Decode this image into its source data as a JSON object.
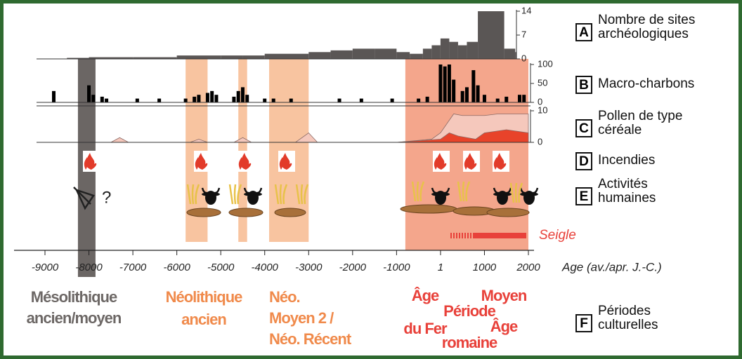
{
  "time_axis": {
    "xlim": [
      -9000,
      2000
    ],
    "xticks": [
      -9000,
      -8000,
      -7000,
      -6000,
      -5000,
      -4000,
      -3000,
      -2000,
      -1000,
      1,
      1000,
      2000
    ],
    "label": "Age (av./apr. J.-C.)"
  },
  "bands": [
    {
      "start": -8250,
      "end": -7850,
      "color": "#6b6664"
    },
    {
      "start": -5800,
      "end": -5300,
      "color": "#f8c4a0"
    },
    {
      "start": -4600,
      "end": -4400,
      "color": "#f8c4a0"
    },
    {
      "start": -3900,
      "end": -3000,
      "color": "#f8c4a0"
    },
    {
      "start": -800,
      "end": 2000,
      "color": "#f4a68c"
    }
  ],
  "chart_data": [
    {
      "type": "step",
      "color": "#5a5655",
      "x": [
        -8500,
        -8000,
        -7000,
        -6000,
        -5000,
        -4500,
        -4000,
        -3500,
        -3000,
        -2500,
        -2000,
        -1500,
        -1000,
        -700,
        -400,
        -200,
        0,
        200,
        400,
        600,
        850,
        1450,
        1700
      ],
      "values": [
        0.3,
        0.5,
        0.5,
        1,
        1,
        1,
        1.5,
        1.5,
        2,
        2.5,
        3,
        3,
        2,
        1.5,
        3,
        4,
        6,
        5,
        4,
        5,
        14,
        3,
        2
      ],
      "ylim": [
        0,
        14
      ],
      "yticks": [
        0,
        7,
        14
      ]
    },
    {
      "type": "bar",
      "color": "#000000",
      "x": [
        -8800,
        -8000,
        -7900,
        -7700,
        -7600,
        -6900,
        -6400,
        -5800,
        -5600,
        -5500,
        -5300,
        -5200,
        -5100,
        -4700,
        -4600,
        -4500,
        -4400,
        -4000,
        -3800,
        -3400,
        -2300,
        -1800,
        -1100,
        -500,
        -300,
        0,
        100,
        200,
        300,
        500,
        600,
        750,
        850,
        1000,
        1300,
        1500,
        1800,
        1900
      ],
      "values": [
        30,
        45,
        20,
        15,
        10,
        10,
        10,
        10,
        15,
        20,
        25,
        30,
        20,
        15,
        30,
        40,
        20,
        10,
        10,
        10,
        10,
        10,
        10,
        10,
        15,
        100,
        95,
        100,
        60,
        30,
        40,
        85,
        45,
        20,
        10,
        15,
        20,
        20
      ],
      "ylim": [
        0,
        100
      ],
      "yticks": [
        0,
        50,
        100
      ]
    },
    {
      "type": "area",
      "series": [
        {
          "color": "#f5c8bc",
          "x": [
            -9000,
            -7500,
            -7300,
            -7100,
            -5700,
            -5500,
            -5300,
            -4700,
            -4500,
            -4300,
            -3300,
            -3000,
            -2800,
            -1000,
            -200,
            0,
            300,
            500,
            1000,
            1300,
            2000
          ],
          "values": [
            0,
            0,
            1.5,
            0,
            0,
            1,
            0,
            0,
            1.5,
            0,
            0,
            3,
            0,
            0,
            1,
            3,
            9,
            8.5,
            8.5,
            9,
            9
          ]
        },
        {
          "color": "#e8432a",
          "x": [
            -1000,
            0,
            200,
            400,
            800,
            1000,
            1500,
            2000
          ],
          "values": [
            0,
            1,
            3,
            2,
            1,
            3,
            4,
            3
          ]
        }
      ],
      "ylim": [
        0,
        10
      ],
      "yticks": [
        0,
        10
      ]
    }
  ],
  "question_mark": "?",
  "seigle": "Seigle",
  "legend": [
    {
      "letter": "A",
      "lines": [
        "Nombre de sites",
        "archéologiques"
      ]
    },
    {
      "letter": "B",
      "lines": [
        "Macro-charbons"
      ]
    },
    {
      "letter": "C",
      "lines": [
        "Pollen de type",
        "céréale"
      ]
    },
    {
      "letter": "D",
      "lines": [
        "Incendies"
      ]
    },
    {
      "letter": "E",
      "lines": [
        "Activités",
        "humaines"
      ]
    },
    {
      "letter": "F",
      "lines": [
        "Périodes",
        "culturelles"
      ]
    }
  ],
  "period_labels": [
    {
      "lines": [
        "Mésolithique",
        "ancien/moyen"
      ],
      "color": "#6d6866"
    },
    {
      "lines": [
        "Néolithique",
        "ancien"
      ],
      "color": "#f08a4b"
    },
    {
      "lines": [
        "Néo.",
        "Moyen 2 /",
        "Néo. Récent"
      ],
      "color": "#f08a4b"
    },
    {
      "lines": [
        "Âge",
        "du Fer"
      ],
      "color": "#e8413a"
    },
    {
      "lines": [
        "Période",
        "romaine"
      ],
      "color": "#e8413a"
    },
    {
      "lines": [
        "Moyen",
        "Âge"
      ],
      "color": "#e8413a"
    }
  ]
}
